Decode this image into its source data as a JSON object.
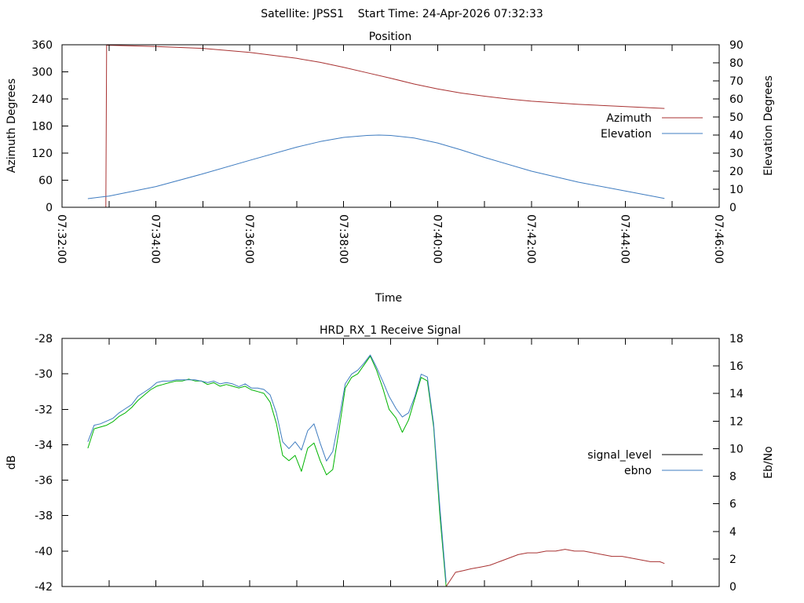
{
  "header": {
    "title": "Satellite: JPSS1    Start Time: 24-Apr-2026 07:32:33"
  },
  "chart_data": [
    {
      "type": "line",
      "title": "Position",
      "xlabel": "Time",
      "ylabel": "Azimuth Degrees",
      "y2label": "Elevation Degrees",
      "xlim": [
        "07:32:00",
        "07:46:00"
      ],
      "ylim": [
        0,
        360
      ],
      "y2lim": [
        0,
        90
      ],
      "x_ticks": [
        "07:32:00",
        "07:34:00",
        "07:36:00",
        "07:38:00",
        "07:40:00",
        "07:42:00",
        "07:44:00",
        "07:46:00"
      ],
      "y_ticks": [
        0,
        60,
        120,
        180,
        240,
        300,
        360
      ],
      "y2_ticks": [
        0,
        10,
        20,
        30,
        40,
        50,
        60,
        70,
        80,
        90
      ],
      "grid": false,
      "legend_position": "right",
      "series": [
        {
          "name": "Azimuth",
          "axis": "y",
          "color": "#a83232",
          "legend_color": "#a83232",
          "x": [
            "07:32:33",
            "07:32:40",
            "07:32:56",
            "07:32:57",
            "07:33:00",
            "07:34:00",
            "07:35:00",
            "07:36:00",
            "07:37:00",
            "07:37:30",
            "07:38:00",
            "07:38:30",
            "07:39:00",
            "07:39:30",
            "07:40:00",
            "07:40:30",
            "07:41:00",
            "07:41:30",
            "07:42:00",
            "07:43:00",
            "07:44:00",
            "07:44:50"
          ],
          "y": [
            0,
            0,
            0,
            359,
            359,
            356,
            352,
            343,
            330,
            321,
            310,
            298,
            286,
            273,
            262,
            253,
            246,
            240,
            235,
            228,
            223,
            219
          ]
        },
        {
          "name": "Elevation",
          "axis": "y2",
          "color": "#3f7cc0",
          "legend_color": "#3f7cc0",
          "x": [
            "07:32:33",
            "07:33:00",
            "07:34:00",
            "07:35:00",
            "07:36:00",
            "07:37:00",
            "07:37:30",
            "07:38:00",
            "07:38:30",
            "07:38:45",
            "07:39:00",
            "07:39:30",
            "07:40:00",
            "07:40:30",
            "07:41:00",
            "07:42:00",
            "07:43:00",
            "07:44:00",
            "07:44:50"
          ],
          "y": [
            4.8,
            6.2,
            11.5,
            18.5,
            26.0,
            33.3,
            36.4,
            38.7,
            39.8,
            40.0,
            39.8,
            38.4,
            35.6,
            31.8,
            27.6,
            20.0,
            13.9,
            9.0,
            4.9
          ]
        }
      ]
    },
    {
      "type": "line",
      "title": "HRD_RX_1 Receive Signal",
      "ylabel": "dB",
      "y2label": "Eb/No",
      "xlim": [
        "07:32:00",
        "07:46:00"
      ],
      "ylim": [
        -42,
        -28
      ],
      "y2lim": [
        0,
        18
      ],
      "y_ticks": [
        -42,
        -40,
        -38,
        -36,
        -34,
        -32,
        -30,
        -28
      ],
      "y2_ticks": [
        0,
        2,
        4,
        6,
        8,
        10,
        12,
        14,
        16,
        18
      ],
      "grid": false,
      "legend_position": "right",
      "series": [
        {
          "name": "signal_level",
          "axis": "y",
          "color": "#00b400",
          "legend_color": "#000000",
          "x": [
            "07:32:33",
            "07:32:41",
            "07:32:49",
            "07:32:57",
            "07:33:05",
            "07:33:13",
            "07:33:21",
            "07:33:29",
            "07:33:37",
            "07:33:45",
            "07:33:53",
            "07:34:01",
            "07:34:09",
            "07:34:17",
            "07:34:26",
            "07:34:34",
            "07:34:42",
            "07:34:50",
            "07:34:58",
            "07:35:06",
            "07:35:14",
            "07:35:22",
            "07:35:30",
            "07:35:38",
            "07:35:46",
            "07:35:54",
            "07:36:02",
            "07:36:10",
            "07:36:18",
            "07:36:26",
            "07:36:34",
            "07:36:42",
            "07:36:50",
            "07:36:58",
            "07:37:06",
            "07:37:14",
            "07:37:22",
            "07:37:30",
            "07:37:38",
            "07:37:46",
            "07:37:54",
            "07:38:02",
            "07:38:10",
            "07:38:18",
            "07:38:26",
            "07:38:34",
            "07:38:42",
            "07:38:50",
            "07:38:58",
            "07:39:07",
            "07:39:15",
            "07:39:23",
            "07:39:31",
            "07:39:39",
            "07:39:47",
            "07:39:55",
            "07:40:03",
            "07:40:11"
          ],
          "y": [
            -34.2,
            -33.1,
            -33.0,
            -32.9,
            -32.7,
            -32.4,
            -32.2,
            -31.9,
            -31.5,
            -31.2,
            -30.9,
            -30.7,
            -30.6,
            -30.5,
            -30.4,
            -30.4,
            -30.3,
            -30.4,
            -30.4,
            -30.6,
            -30.5,
            -30.7,
            -30.6,
            -30.7,
            -30.8,
            -30.7,
            -30.9,
            -31.0,
            -31.1,
            -31.6,
            -32.8,
            -34.6,
            -34.9,
            -34.6,
            -35.5,
            -34.2,
            -33.9,
            -34.9,
            -35.7,
            -35.4,
            -33.2,
            -30.8,
            -30.2,
            -30.0,
            -29.5,
            -29.0,
            -29.8,
            -30.8,
            -32.0,
            -32.5,
            -33.3,
            -32.6,
            -31.4,
            -30.2,
            -30.4,
            -33.0,
            -38.0,
            -42.0
          ]
        },
        {
          "name": "ebno",
          "axis": "y2",
          "color": "#3f7cc0",
          "legend_color": "#3f7cc0",
          "x": [
            "07:32:33",
            "07:32:41",
            "07:32:49",
            "07:32:57",
            "07:33:05",
            "07:33:13",
            "07:33:21",
            "07:33:29",
            "07:33:37",
            "07:33:45",
            "07:33:53",
            "07:34:01",
            "07:34:09",
            "07:34:17",
            "07:34:26",
            "07:34:34",
            "07:34:42",
            "07:34:50",
            "07:34:58",
            "07:35:06",
            "07:35:14",
            "07:35:22",
            "07:35:30",
            "07:35:38",
            "07:35:46",
            "07:35:54",
            "07:36:02",
            "07:36:10",
            "07:36:18",
            "07:36:26",
            "07:36:34",
            "07:36:42",
            "07:36:50",
            "07:36:58",
            "07:37:06",
            "07:37:14",
            "07:37:22",
            "07:37:30",
            "07:37:38",
            "07:37:46",
            "07:37:54",
            "07:38:02",
            "07:38:10",
            "07:38:18",
            "07:38:26",
            "07:38:34",
            "07:38:42",
            "07:38:50",
            "07:38:58",
            "07:39:07",
            "07:39:15",
            "07:39:23",
            "07:39:31",
            "07:39:39",
            "07:39:47",
            "07:39:55",
            "07:40:03",
            "07:40:11"
          ],
          "y": [
            10.5,
            11.7,
            11.8,
            12.0,
            12.2,
            12.6,
            12.9,
            13.2,
            13.8,
            14.1,
            14.4,
            14.8,
            14.9,
            14.9,
            15.0,
            15.0,
            15.0,
            15.0,
            14.9,
            14.8,
            14.9,
            14.7,
            14.8,
            14.7,
            14.5,
            14.7,
            14.4,
            14.4,
            14.3,
            13.9,
            12.6,
            10.5,
            10.0,
            10.5,
            9.9,
            11.3,
            11.8,
            10.4,
            9.1,
            9.8,
            12.1,
            14.7,
            15.4,
            15.7,
            16.2,
            16.8,
            15.9,
            14.9,
            13.8,
            12.9,
            12.3,
            12.6,
            13.8,
            15.4,
            15.2,
            11.8,
            5.7,
            0.3
          ]
        },
        {
          "axis": "y",
          "color": "#a83232",
          "x": [
            "07:40:11",
            "07:40:17",
            "07:40:23",
            "07:40:33",
            "07:40:43",
            "07:40:55",
            "07:41:07",
            "07:41:19",
            "07:41:31",
            "07:41:43",
            "07:41:55",
            "07:42:07",
            "07:42:19",
            "07:42:31",
            "07:42:43",
            "07:42:55",
            "07:43:07",
            "07:43:19",
            "07:43:31",
            "07:43:43",
            "07:43:56",
            "07:44:08",
            "07:44:20",
            "07:44:32",
            "07:44:44",
            "07:44:50"
          ],
          "y": [
            -42.0,
            -41.6,
            -41.2,
            -41.1,
            -41.0,
            -40.9,
            -40.8,
            -40.6,
            -40.4,
            -40.2,
            -40.1,
            -40.1,
            -40.0,
            -40.0,
            -39.9,
            -40.0,
            -40.0,
            -40.1,
            -40.2,
            -40.3,
            -40.3,
            -40.4,
            -40.5,
            -40.6,
            -40.6,
            -40.7
          ]
        }
      ]
    }
  ]
}
